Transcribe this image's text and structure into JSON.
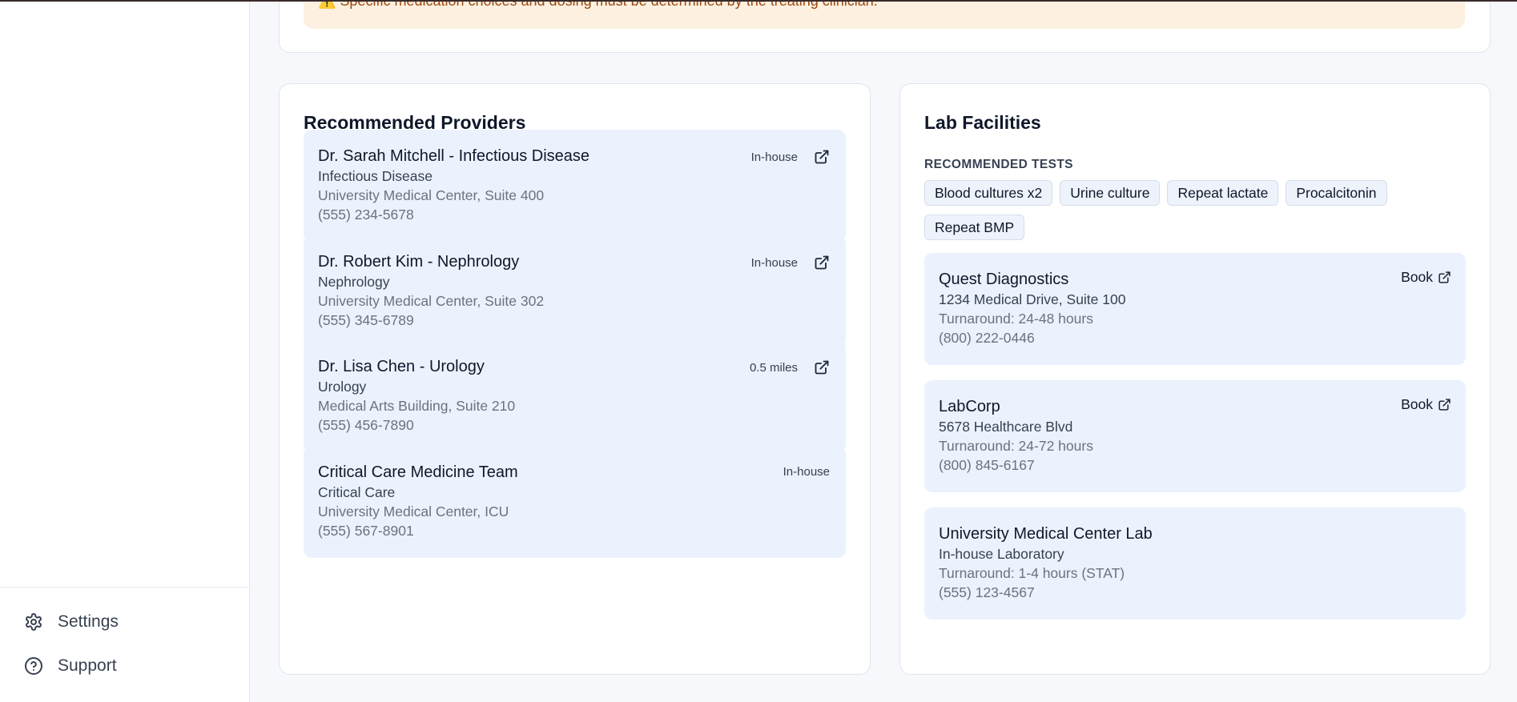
{
  "sidebar": {
    "items": [
      {
        "label": "Settings",
        "icon": "gear-icon"
      },
      {
        "label": "Support",
        "icon": "help-circle-icon"
      }
    ]
  },
  "warning": {
    "icon": "warning-icon",
    "text": "⚠️ Specific medication choices and dosing must be determined by the treating clinician."
  },
  "providers": {
    "title": "Recommended Providers",
    "items": [
      {
        "name": "Dr. Sarah Mitchell - Infectious Disease",
        "specialty": "Infectious Disease",
        "address": "University Medical Center, Suite 400",
        "phone": "(555) 234-5678",
        "location": "In-house",
        "external": true
      },
      {
        "name": "Dr. Robert Kim - Nephrology",
        "specialty": "Nephrology",
        "address": "University Medical Center, Suite 302",
        "phone": "(555) 345-6789",
        "location": "In-house",
        "external": true
      },
      {
        "name": "Dr. Lisa Chen - Urology",
        "specialty": "Urology",
        "address": "Medical Arts Building, Suite 210",
        "phone": "(555) 456-7890",
        "location": "0.5 miles",
        "external": true
      },
      {
        "name": "Critical Care Medicine Team",
        "specialty": "Critical Care",
        "address": "University Medical Center, ICU",
        "phone": "(555) 567-8901",
        "location": "In-house",
        "external": false
      }
    ]
  },
  "labs": {
    "title": "Lab Facilities",
    "tests_label": "RECOMMENDED TESTS",
    "tests": [
      "Blood cultures x2",
      "Urine culture",
      "Repeat lactate",
      "Procalcitonin",
      "Repeat BMP"
    ],
    "items": [
      {
        "name": "Quest Diagnostics",
        "address": "1234 Medical Drive, Suite 100",
        "turnaround": "Turnaround: 24-48 hours",
        "phone": "(800) 222-0446",
        "action": "Book"
      },
      {
        "name": "LabCorp",
        "address": "5678 Healthcare Blvd",
        "turnaround": "Turnaround: 24-72 hours",
        "phone": "(800) 845-6167",
        "action": "Book"
      },
      {
        "name": "University Medical Center Lab",
        "address": "In-house Laboratory",
        "turnaround": "Turnaround: 1-4 hours (STAT)",
        "phone": "(555) 123-4567",
        "action": null
      }
    ]
  }
}
